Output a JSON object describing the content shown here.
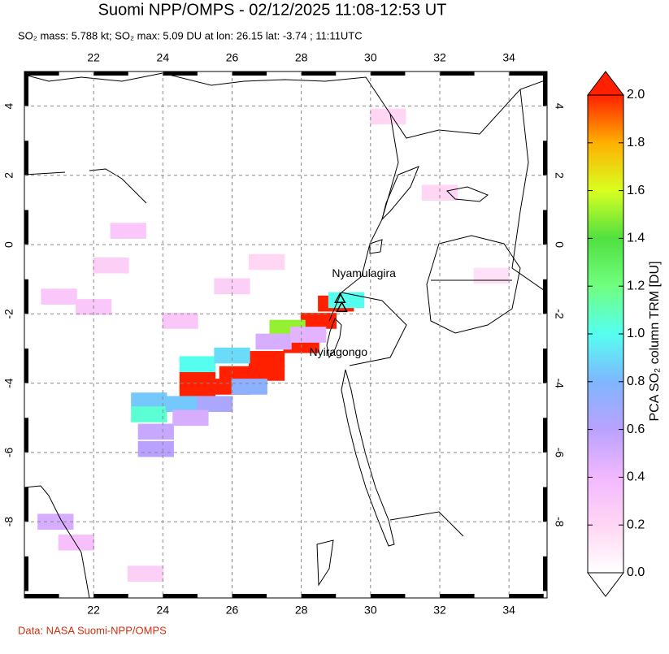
{
  "chart_data": {
    "type": "map",
    "title": "Suomi NPP/OMPS - 02/12/2025 11:08-12:53 UT",
    "subtitle": "SO₂ mass: 5.788 kt; SO₂ max: 5.09 DU at lon: 26.15 lat: -3.74 ; 11:11UTC",
    "source": "Data: NASA Suomi-NPP/OMPS",
    "xlim": [
      20.0,
      35.1
    ],
    "ylim": [
      -10.2,
      5.0
    ],
    "xticks": [
      22,
      24,
      26,
      28,
      30,
      32,
      34
    ],
    "yticks": [
      4,
      2,
      0,
      -2,
      -4,
      -6,
      -8
    ],
    "grid": true,
    "lon": [
      25.0,
      25.0,
      26.15,
      26.0,
      27.0,
      27.0,
      28.0,
      28.5,
      29.0,
      27.6,
      29.3,
      25.0,
      26.0,
      23.6,
      23.6,
      24.6,
      25.5,
      26.5,
      23.8,
      23.8,
      24.8,
      27.2,
      28.2,
      20.9,
      21.0,
      22.0,
      23.0,
      22.5,
      24.5,
      21.5,
      26.0,
      27.0,
      32.0,
      33.5,
      30.5,
      23.5
    ],
    "lat": [
      -3.9,
      -4.3,
      -3.74,
      -4.1,
      -3.3,
      -3.7,
      -2.9,
      -2.2,
      -1.7,
      -2.4,
      -1.6,
      -3.45,
      -3.2,
      -4.5,
      -4.9,
      -4.6,
      -4.6,
      -4.1,
      -5.4,
      -5.9,
      -5.0,
      -2.8,
      -2.6,
      -8.0,
      -1.5,
      -1.8,
      0.4,
      -0.6,
      -2.2,
      -8.6,
      -1.2,
      -0.5,
      1.5,
      -0.9,
      3.7,
      -9.5
    ],
    "values": [
      2.2,
      2.6,
      5.09,
      2.8,
      2.5,
      2.4,
      2.3,
      2.1,
      2.4,
      1.5,
      1.0,
      1.0,
      0.9,
      0.85,
      1.05,
      0.85,
      0.65,
      0.75,
      0.55,
      0.6,
      0.5,
      0.5,
      0.45,
      0.5,
      0.3,
      0.3,
      0.3,
      0.25,
      0.3,
      0.35,
      0.25,
      0.2,
      0.2,
      0.15,
      0.2,
      0.25
    ],
    "clim": [
      0,
      2
    ],
    "cticks": [
      {
        "value": 0,
        "label": "0.0"
      },
      0.2,
      0.4,
      0.6,
      0.8,
      {
        "value": 1,
        "label": "1.0"
      },
      1.2,
      1.4,
      1.6,
      1.8,
      {
        "value": 2,
        "label": "2.0"
      }
    ],
    "colormap": [
      "#ffffff",
      "#ffd6f3",
      "#f2b8ff",
      "#b9a2ff",
      "#7fb6ff",
      "#55fff0",
      "#70ff80",
      "#50e040",
      "#d8ff20",
      "#ffb000",
      "#ff2000"
    ],
    "colorbar_label": "PCA SO₂ column TRM [DU]",
    "annotations": [
      {
        "text": "Nyamulagira",
        "lon": 29.12,
        "lat": -1.55
      },
      {
        "text": "Nyiragongo",
        "lon": 29.17,
        "lat": -1.81
      }
    ]
  }
}
